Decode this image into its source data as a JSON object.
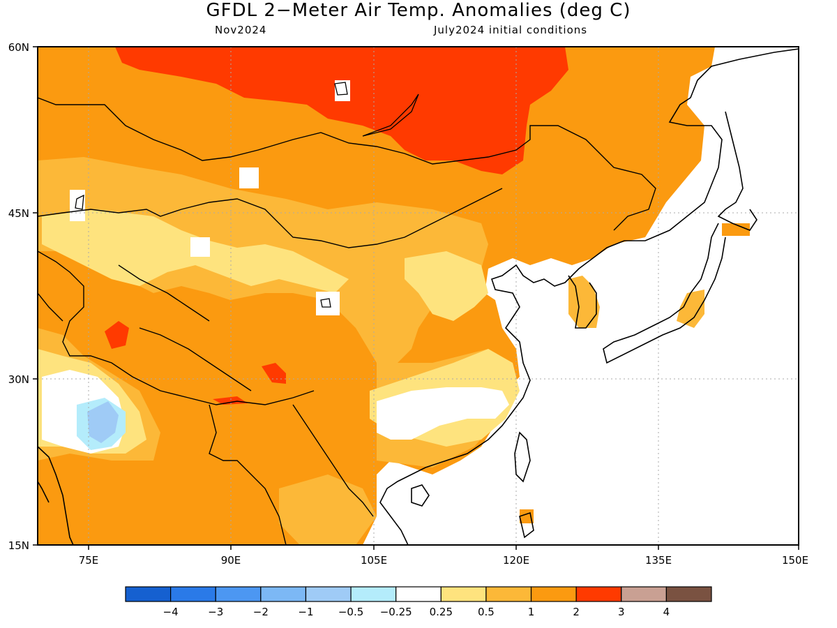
{
  "map": {
    "title": "GFDL 2−Meter Air Temp. Anomalies (deg C)",
    "subtitle_left": "Nov2024",
    "subtitle_right": "July2024 initial conditions",
    "lon_labels": [
      "75E",
      "90E",
      "105E",
      "120E",
      "135E",
      "150E"
    ],
    "lat_labels": [
      "60N",
      "45N",
      "30N",
      "15N"
    ]
  },
  "colorbar": {
    "colors": [
      "#1560d0",
      "#2a7ae8",
      "#4c97f2",
      "#7cb8f5",
      "#9fcbf6",
      "#b4ecfb",
      "#ffffff",
      "#fee37e",
      "#fcb838",
      "#fb9a10",
      "#ff3a00",
      "#c9a093",
      "#7a5241"
    ],
    "tick_labels": [
      "−4",
      "−3",
      "−2",
      "−1",
      "−0.5",
      "−0.25",
      "0.25",
      "0.5",
      "1",
      "2",
      "3",
      "4"
    ]
  },
  "legend_colors": {
    "light_yellow": "#fee37e",
    "light_orange": "#fcb838",
    "orange": "#fb9a10",
    "red": "#ff3a00",
    "light_blue": "#9fcbf6",
    "cyan": "#b4ecfb"
  }
}
